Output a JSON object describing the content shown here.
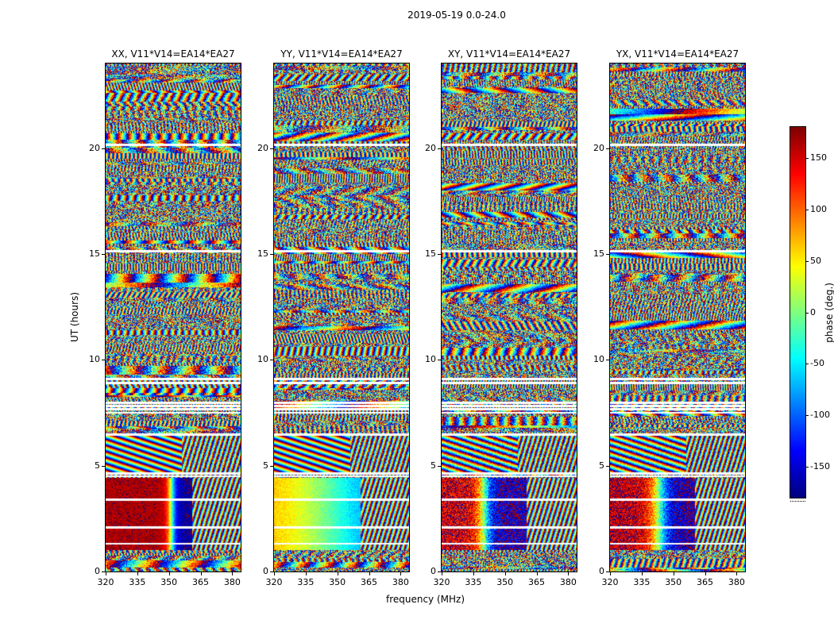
{
  "chart_data": {
    "type": "heatmap",
    "title": "2019-05-19 0.0-24.0",
    "xlabel": "frequency (MHz)",
    "ylabel": "UT (hours)",
    "colorbar_label": "phase (deg.)",
    "colormap": "jet",
    "xlim": [
      320,
      384
    ],
    "ylim": [
      0,
      24
    ],
    "xticks": [
      320,
      335,
      350,
      365,
      380
    ],
    "yticks": [
      0,
      5,
      10,
      15,
      20
    ],
    "colorbar_ticks": [
      150,
      100,
      50,
      0,
      -50,
      -100,
      -150
    ],
    "value_range_deg": [
      -180,
      180
    ],
    "panels": [
      {
        "pol": "XX",
        "title": "XX, V11*V14=EA14*EA27",
        "seed": 101,
        "smooth": {
          "phase_left_deg": 165,
          "phase_right_deg": -168,
          "transition_mhz": 351,
          "transition_width_mhz": 1.2,
          "speckle": 0.3
        },
        "noise_start_mhz": 361,
        "fringe_speckle": 0.3
      },
      {
        "pol": "YY",
        "title": "YY, V11*V14=EA14*EA27",
        "seed": 202,
        "smooth": {
          "phase_left_deg": 95,
          "phase_right_deg": -150,
          "transition_mhz": 350,
          "transition_width_mhz": 16,
          "speckle": 0.3
        },
        "noise_start_mhz": 361,
        "fringe_speckle": 0.3
      },
      {
        "pol": "XY",
        "title": "XY, V11*V14=EA14*EA27",
        "seed": 303,
        "smooth": {
          "phase_left_deg": 150,
          "phase_right_deg": -160,
          "transition_mhz": 340,
          "transition_width_mhz": 2.0,
          "speckle": 0.9
        },
        "noise_start_mhz": 360,
        "fringe_speckle": 1.1
      },
      {
        "pol": "YX",
        "title": "YX, V11*V14=EA14*EA27",
        "seed": 404,
        "smooth": {
          "phase_left_deg": 155,
          "phase_right_deg": -162,
          "transition_mhz": 343,
          "transition_width_mhz": 2.5,
          "speckle": 0.8
        },
        "noise_start_mhz": 360,
        "fringe_speckle": 1.0
      }
    ],
    "features": {
      "smooth_band_ut": [
        1.02,
        4.44
      ],
      "diagonal_fringe_band_ut": [
        4.7,
        6.42
      ],
      "fringe_band_noise_start_mhz": 356,
      "blank_row_times_ut": [
        1.33,
        2.1,
        3.42,
        4.52,
        4.66,
        6.5,
        7.52,
        7.68,
        7.84,
        8.0,
        8.92,
        9.1,
        15.15,
        20.18
      ],
      "blank_halfwidth_ut": 0.05
    }
  }
}
